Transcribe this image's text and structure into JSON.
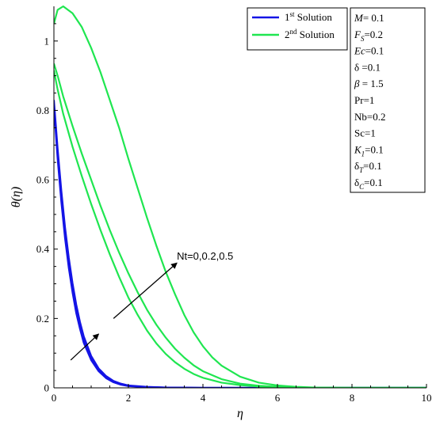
{
  "chart_data": {
    "type": "line",
    "xlabel": "η",
    "ylabel": "θ(η)",
    "xlim": [
      0,
      10
    ],
    "ylim": [
      0,
      1.1
    ],
    "x_ticks": [
      0,
      2,
      4,
      6,
      8,
      10
    ],
    "y_ticks": [
      0,
      0.2,
      0.4,
      0.6,
      0.8,
      1
    ],
    "x_tick_labels": [
      "0",
      "2",
      "4",
      "6",
      "8",
      "10"
    ],
    "y_tick_labels": [
      "0",
      "0.2",
      "0.4",
      "0.6",
      "0.8",
      "1"
    ],
    "legend": {
      "placement": "top-right",
      "entries": [
        {
          "base": "1",
          "sup": "st",
          "rest": " Solution",
          "color": "#1414e6"
        },
        {
          "base": "2",
          "sup": "nd",
          "rest": " Solution",
          "color": "#1fe650"
        }
      ]
    },
    "parameters": [
      {
        "sym": "M",
        "sub": "",
        "italic": true,
        "value": "= 0.1"
      },
      {
        "sym": "F",
        "sub": "S",
        "italic": true,
        "value": "=0.2"
      },
      {
        "sym": "Ec",
        "sub": "",
        "italic": true,
        "value": "=0.1"
      },
      {
        "sym": "δ",
        "sub": "",
        "italic": false,
        "value": " =0.1"
      },
      {
        "sym": "β",
        "sub": "",
        "italic": true,
        "value": " = 1.5"
      },
      {
        "sym": "Pr",
        "sub": "",
        "italic": false,
        "value": "=1"
      },
      {
        "sym": "Nb",
        "sub": "",
        "italic": false,
        "value": "=0.2"
      },
      {
        "sym": "Sc",
        "sub": "",
        "italic": false,
        "value": "=1"
      },
      {
        "sym": "K",
        "sub": "1",
        "italic": true,
        "value": "=0.1"
      },
      {
        "sym": "δ",
        "sub": "T",
        "italic": false,
        "value": "=0.1"
      },
      {
        "sym": "δ",
        "sub": "C",
        "italic": false,
        "value": "=0.1"
      }
    ],
    "annotation": {
      "text": "Nt=0,0.2,0.5",
      "arrows": [
        {
          "from": [
            0.45,
            0.08
          ],
          "to": [
            1.2,
            0.155
          ]
        },
        {
          "from": [
            1.6,
            0.2
          ],
          "to": [
            3.3,
            0.36
          ]
        }
      ]
    },
    "series": [
      {
        "group": "1st Solution",
        "color": "#1414e6",
        "x": [
          0,
          0.1,
          0.2,
          0.3,
          0.4,
          0.5,
          0.6,
          0.7,
          0.8,
          1.0,
          1.2,
          1.4,
          1.6,
          1.8,
          2.0,
          2.5,
          3.0,
          4.0,
          5.0,
          10.0
        ],
        "y": [
          0.81,
          0.66,
          0.535,
          0.43,
          0.345,
          0.275,
          0.215,
          0.17,
          0.13,
          0.08,
          0.048,
          0.028,
          0.016,
          0.009,
          0.005,
          0.002,
          0.001,
          0.0,
          0.0,
          0.0
        ]
      },
      {
        "group": "1st Solution",
        "color": "#1414e6",
        "x": [
          0,
          0.1,
          0.2,
          0.3,
          0.4,
          0.5,
          0.6,
          0.7,
          0.8,
          1.0,
          1.2,
          1.4,
          1.6,
          1.8,
          2.0,
          2.5,
          3.0,
          4.0,
          5.0,
          10.0
        ],
        "y": [
          0.82,
          0.675,
          0.55,
          0.445,
          0.36,
          0.288,
          0.228,
          0.18,
          0.14,
          0.086,
          0.052,
          0.031,
          0.018,
          0.01,
          0.006,
          0.002,
          0.001,
          0.0,
          0.0,
          0.0
        ]
      },
      {
        "group": "1st Solution",
        "color": "#1414e6",
        "x": [
          0,
          0.1,
          0.2,
          0.3,
          0.4,
          0.5,
          0.6,
          0.7,
          0.8,
          1.0,
          1.2,
          1.4,
          1.6,
          1.8,
          2.0,
          2.5,
          3.0,
          4.0,
          5.0,
          10.0
        ],
        "y": [
          0.83,
          0.69,
          0.568,
          0.462,
          0.375,
          0.302,
          0.24,
          0.19,
          0.149,
          0.092,
          0.056,
          0.034,
          0.02,
          0.012,
          0.007,
          0.003,
          0.001,
          0.0,
          0.0,
          0.0
        ]
      },
      {
        "group": "2nd Solution",
        "color": "#1fe650",
        "x": [
          0,
          0.1,
          0.25,
          0.5,
          0.75,
          1.0,
          1.25,
          1.5,
          1.75,
          2.0,
          2.25,
          2.5,
          2.75,
          3.0,
          3.25,
          3.5,
          3.75,
          4.0,
          4.5,
          5.0,
          5.5,
          6.0,
          6.5,
          7.0,
          8.0,
          10.0
        ],
        "y": [
          0.915,
          0.86,
          0.79,
          0.695,
          0.61,
          0.53,
          0.455,
          0.385,
          0.32,
          0.26,
          0.21,
          0.165,
          0.128,
          0.098,
          0.074,
          0.055,
          0.04,
          0.029,
          0.015,
          0.008,
          0.004,
          0.002,
          0.001,
          0.0,
          0.0,
          0.0
        ]
      },
      {
        "group": "2nd Solution",
        "color": "#1fe650",
        "x": [
          0,
          0.1,
          0.25,
          0.5,
          0.75,
          1.0,
          1.25,
          1.5,
          1.75,
          2.0,
          2.25,
          2.5,
          2.75,
          3.0,
          3.25,
          3.5,
          3.75,
          4.0,
          4.5,
          5.0,
          5.5,
          6.0,
          6.5,
          7.0,
          8.0,
          10.0
        ],
        "y": [
          0.935,
          0.9,
          0.84,
          0.755,
          0.675,
          0.6,
          0.525,
          0.455,
          0.39,
          0.33,
          0.275,
          0.225,
          0.182,
          0.145,
          0.113,
          0.087,
          0.065,
          0.048,
          0.025,
          0.012,
          0.006,
          0.003,
          0.001,
          0.0,
          0.0,
          0.0
        ]
      },
      {
        "group": "2nd Solution",
        "color": "#1fe650",
        "x": [
          0,
          0.1,
          0.25,
          0.5,
          0.75,
          1.0,
          1.25,
          1.5,
          1.75,
          2.0,
          2.25,
          2.5,
          2.75,
          3.0,
          3.25,
          3.5,
          3.75,
          4.0,
          4.25,
          4.5,
          5.0,
          5.5,
          6.0,
          6.5,
          7.0,
          8.0,
          10.0
        ],
        "y": [
          1.05,
          1.09,
          1.1,
          1.08,
          1.04,
          0.98,
          0.91,
          0.83,
          0.75,
          0.66,
          0.575,
          0.49,
          0.41,
          0.335,
          0.27,
          0.21,
          0.16,
          0.12,
          0.088,
          0.064,
          0.032,
          0.015,
          0.007,
          0.003,
          0.001,
          0.0,
          0.0
        ]
      }
    ]
  }
}
